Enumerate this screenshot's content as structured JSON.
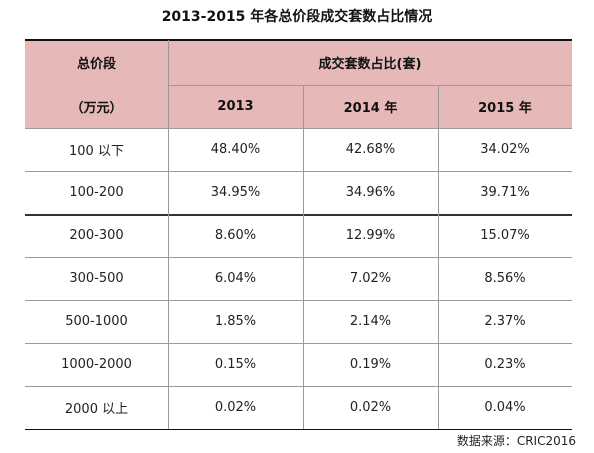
{
  "title": "2013-2015 年各总价段成交套数占比情况",
  "header": {
    "first_col": [
      "总价段",
      "（万元）"
    ],
    "group_label": "成交套数占比(套)",
    "years": [
      "2013",
      "2014 年",
      "2015 年"
    ]
  },
  "table": {
    "rows": [
      [
        "100 以下",
        "48.40%",
        "42.68%",
        "34.02%"
      ],
      [
        "100-200",
        "34.95%",
        "34.96%",
        "39.71%"
      ],
      [
        "200-300",
        "8.60%",
        "12.99%",
        "15.07%"
      ],
      [
        "300-500",
        "6.04%",
        "7.02%",
        "8.56%"
      ],
      [
        "500-1000",
        "1.85%",
        "2.14%",
        "2.37%"
      ],
      [
        "1000-2000",
        "0.15%",
        "0.19%",
        "0.23%"
      ],
      [
        "2000 以上",
        "0.02%",
        "0.02%",
        "0.04%"
      ]
    ]
  },
  "source": "数据来源：CRIC2016"
}
